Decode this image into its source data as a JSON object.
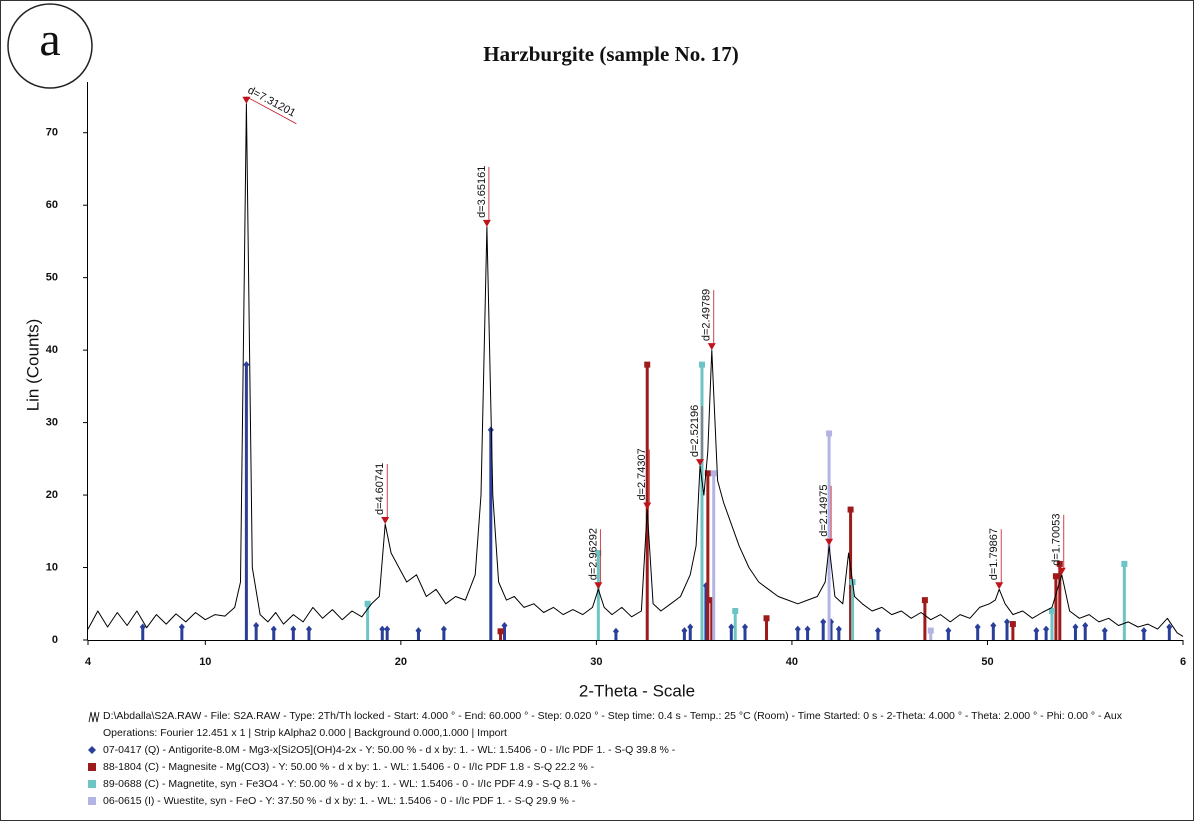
{
  "chart_data": {
    "type": "line",
    "panel_label": "a",
    "title": "Harzburgite (sample No. 17)",
    "x_label": "2-Theta - Scale",
    "y_label": "Lin (Counts)",
    "xlim": [
      4,
      60
    ],
    "ylim": [
      0,
      77
    ],
    "xticks": [
      4,
      10,
      20,
      30,
      40,
      50,
      {
        "value": 60,
        "label": "6"
      }
    ],
    "yticks": [
      0,
      10,
      20,
      30,
      40,
      50,
      60,
      70
    ],
    "series": [
      {
        "name": "D:\\Abdalla\\S2A.RAW - File: S2A.RAW - Type: 2Th/Th locked - Start: 4.000 ° - End: 60.000 ° - Step: 0.020 ° - Step time: 0.4 s - Temp.: 25 °C (Room) - Time Started: 0 s - 2-Theta: 4.000 ° - Theta: 2.000 ° - Phi: 0.00 ° - Aux",
        "color": "#000000",
        "x": [
          4,
          4.5,
          5,
          5.5,
          6,
          6.5,
          7,
          7.5,
          8,
          8.5,
          9,
          9.5,
          10,
          10.5,
          11,
          11.5,
          11.8,
          12.1,
          12.4,
          12.8,
          13.2,
          13.6,
          14,
          14.5,
          15,
          15.5,
          16,
          16.5,
          17,
          17.5,
          18,
          18.5,
          18.9,
          19.2,
          19.5,
          19.9,
          20.3,
          20.8,
          21.3,
          21.8,
          22.3,
          22.8,
          23.3,
          23.8,
          24.1,
          24.4,
          24.7,
          25,
          25.4,
          25.8,
          26.3,
          26.8,
          27.3,
          27.8,
          28.3,
          28.8,
          29.3,
          29.8,
          30.1,
          30.4,
          30.8,
          31.3,
          31.8,
          32.3,
          32.6,
          32.9,
          33.3,
          33.8,
          34.3,
          34.8,
          35.1,
          35.3,
          35.5,
          35.7,
          35.9,
          36.2,
          36.5,
          36.9,
          37.3,
          37.8,
          38.3,
          38.8,
          39.3,
          39.8,
          40.3,
          40.8,
          41.3,
          41.7,
          41.9,
          42.2,
          42.6,
          42.9,
          43.2,
          43.6,
          44.1,
          44.6,
          45.1,
          45.6,
          46.1,
          46.6,
          47.1,
          47.6,
          48.1,
          48.6,
          49.1,
          49.6,
          50.1,
          50.4,
          50.6,
          50.9,
          51.3,
          51.8,
          52.3,
          52.8,
          53.3,
          53.8,
          54.2,
          54.7,
          55.2,
          55.7,
          56.2,
          56.7,
          57.2,
          57.7,
          58.2,
          58.7,
          59.2,
          59.7,
          60
        ],
        "values": [
          1.5,
          4,
          1.8,
          3.8,
          2,
          4,
          1.7,
          3.5,
          2.2,
          3.6,
          2.5,
          3.8,
          2.8,
          3.5,
          3.3,
          4.5,
          8,
          74,
          10,
          3.5,
          2.5,
          3.8,
          2.2,
          3.5,
          2.5,
          4.5,
          3,
          4.2,
          2.8,
          4,
          3.2,
          5,
          6,
          16,
          12,
          10,
          8,
          9,
          6,
          7,
          5,
          6,
          5.5,
          9,
          20,
          57,
          20,
          8,
          5.5,
          6,
          4.5,
          5,
          3.8,
          4.5,
          3.5,
          4.2,
          3.5,
          4.5,
          7,
          4.5,
          3.5,
          4.5,
          3.2,
          4,
          18,
          5,
          4,
          5,
          6,
          9,
          13,
          24,
          20,
          26,
          40,
          22,
          19,
          16,
          13,
          10,
          8,
          7,
          6,
          5.5,
          5,
          5.5,
          6,
          8,
          13,
          6,
          5,
          12,
          6,
          5,
          4,
          4.5,
          3.5,
          4,
          3,
          3.8,
          2.8,
          3.5,
          2.5,
          3.5,
          3,
          4.5,
          5,
          5.5,
          7,
          5,
          3.5,
          4,
          3,
          3.8,
          4.5,
          9,
          4,
          3,
          3.5,
          2.5,
          3,
          2,
          2.5,
          1.8,
          2.2,
          1.5,
          3,
          1,
          0.5
        ]
      }
    ],
    "legend_note": "Operations: Fourier 12.451 x 1 | Strip kAlpha2 0.000 | Background 0.000,1.000 | Import",
    "phases": [
      {
        "name": "07-0417 (Q) - Antigorite-8.0M - Mg3-x[Si2O5](OH)4-2x - Y: 50.00 % - d x by: 1. - WL: 1.5406 - 0 - I/Ic PDF 1. - S-Q 39.8 % -",
        "color": "#2a3f9a",
        "marker": "diamond",
        "positions": [
          6.8,
          8.8,
          12.1,
          12.6,
          13.5,
          14.5,
          15.3,
          19.05,
          19.3,
          20.9,
          22.2,
          24.6,
          25.3,
          31,
          34.5,
          34.8,
          35.6,
          36.9,
          37.6,
          40.3,
          40.8,
          41.6,
          42,
          42.4,
          44.4,
          48,
          49.5,
          50.3,
          51,
          52.5,
          53,
          54.5,
          55,
          56,
          58,
          59.3
        ],
        "heights": [
          1.8,
          1.8,
          38,
          2,
          1.5,
          1.5,
          1.5,
          1.5,
          1.5,
          1.3,
          1.5,
          29,
          2,
          1.2,
          1.3,
          1.8,
          7.5,
          1.8,
          1.8,
          1.5,
          1.5,
          2.5,
          2.5,
          1.5,
          1.3,
          1.3,
          1.8,
          2,
          2.5,
          1.3,
          1.5,
          1.8,
          2,
          1.3,
          1.3,
          1.8
        ]
      },
      {
        "name": "88-1804 (C) - Magnesite - Mg(CO3) - Y: 50.00 % - d x by: 1. - WL: 1.5406 - 0 - I/Ic PDF 1.8 - S-Q 22.2 % -",
        "color": "#9e1b1b",
        "marker": "square",
        "positions": [
          25.1,
          32.6,
          35.7,
          35.9,
          38.7,
          43,
          46.8,
          51.3,
          53.5,
          53.7
        ],
        "heights": [
          1.2,
          38,
          23,
          5.5,
          3,
          18,
          5.5,
          2.2,
          8.8,
          10.5
        ]
      },
      {
        "name": "89-0688 (C) - Magnetite, syn - Fe3O4 - Y: 50.00 % - d x by: 1. - WL: 1.5406 - 0 - I/Ic PDF 4.9 - S-Q 8.1 % -",
        "color": "#6cc4c4",
        "marker": "square",
        "positions": [
          18.3,
          30.1,
          35.4,
          37.1,
          43.1,
          53.3,
          57
        ],
        "heights": [
          5,
          12,
          38,
          4,
          8,
          4,
          10.5
        ]
      },
      {
        "name": "06-0615 (I) - Wuestite, syn - FeO - Y: 37.50 % - d x by: 1. - WL: 1.5406 - 0 - I/Ic PDF 1. - S-Q 29.9 % -",
        "color": "#b4b4e4",
        "marker": "square",
        "positions": [
          36,
          41.9,
          47.1
        ],
        "heights": [
          23,
          28.5,
          1.3
        ]
      }
    ],
    "annotations": [
      {
        "text": "d=7.31201",
        "x": 12.1,
        "y": 74
      },
      {
        "text": "d=4.60741",
        "x": 19.2,
        "y": 16
      },
      {
        "text": "d=3.65161",
        "x": 24.4,
        "y": 57
      },
      {
        "text": "d=2.96292",
        "x": 30.1,
        "y": 7
      },
      {
        "text": "d=2.74307",
        "x": 32.6,
        "y": 18
      },
      {
        "text": "d=2.52196",
        "x": 35.3,
        "y": 24
      },
      {
        "text": "d=2.49789",
        "x": 35.9,
        "y": 40
      },
      {
        "text": "d=2.14975",
        "x": 41.9,
        "y": 13
      },
      {
        "text": "d=1.79867",
        "x": 50.6,
        "y": 7
      },
      {
        "text": "d=1.70053",
        "x": 53.8,
        "y": 9
      }
    ],
    "annotation_color": "#c0141c"
  }
}
